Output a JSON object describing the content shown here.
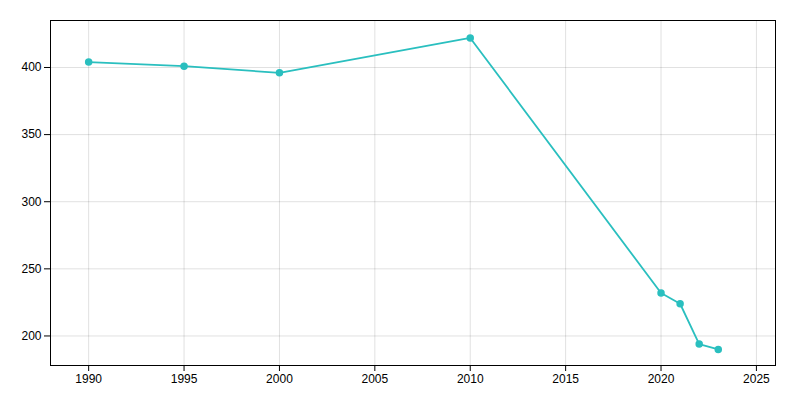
{
  "chart_data": {
    "type": "line",
    "x": [
      1990,
      1995,
      2000,
      2010,
      2020,
      2021,
      2022,
      2023
    ],
    "values": [
      404,
      401,
      396,
      422,
      232,
      224,
      194,
      190
    ],
    "color": "#2abfbf",
    "marker": "circle",
    "xlim": [
      1988,
      2026
    ],
    "ylim": [
      178,
      435
    ],
    "xticks": [
      1990,
      1995,
      2000,
      2005,
      2010,
      2015,
      2020,
      2025
    ],
    "yticks": [
      200,
      250,
      300,
      350,
      400
    ],
    "grid": true
  }
}
